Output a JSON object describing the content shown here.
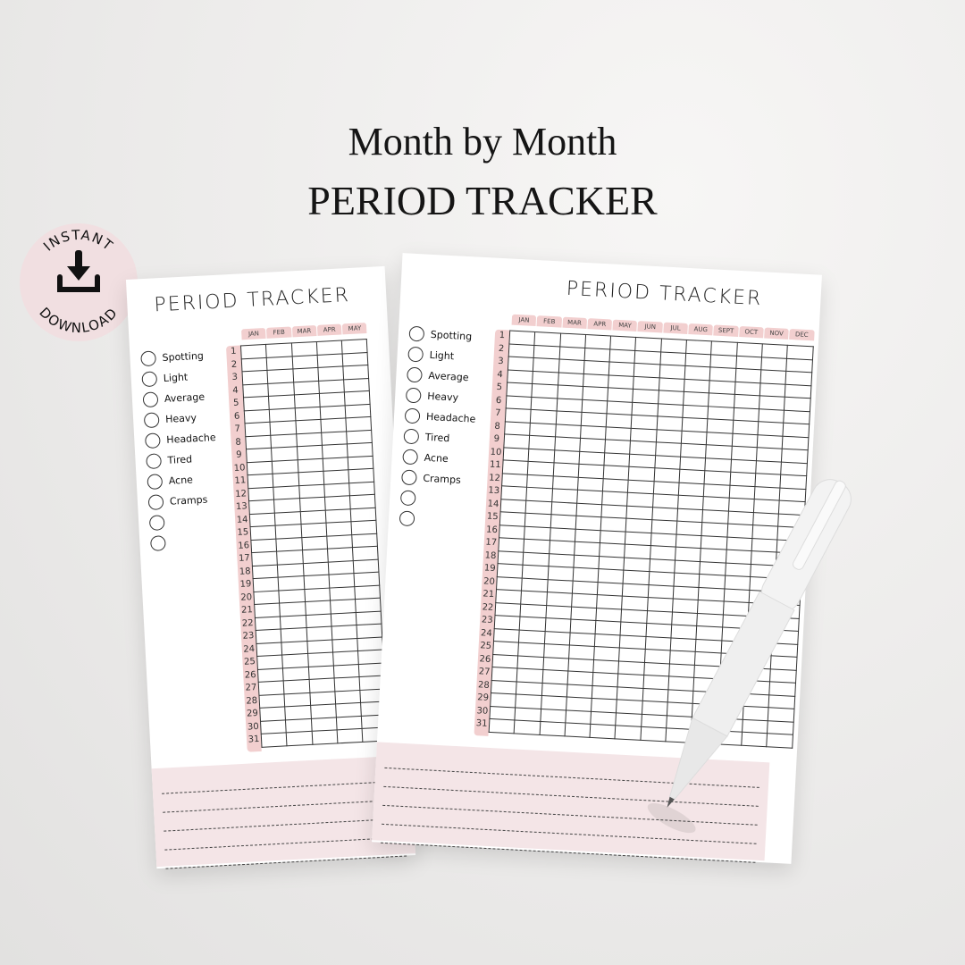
{
  "headline": {
    "line1": "Month by Month",
    "line2": "PERIOD TRACKER"
  },
  "badge": {
    "top_text": "INSTANT",
    "bottom_text": "DOWNLOAD",
    "icon": "download-icon",
    "color": "#f1dfe1"
  },
  "tracker": {
    "title": "PERIOD TRACKER",
    "legend": [
      "Spotting",
      "Light",
      "Average",
      "Heavy",
      "Headache",
      "Tired",
      "Acne",
      "Cramps",
      "",
      ""
    ],
    "months": [
      "JAN",
      "FEB",
      "MAR",
      "APR",
      "MAY",
      "JUN",
      "JUL",
      "AUG",
      "SEPT",
      "OCT",
      "NOV",
      "DEC"
    ],
    "days": [
      "1",
      "2",
      "3",
      "4",
      "5",
      "6",
      "7",
      "8",
      "9",
      "10",
      "11",
      "12",
      "13",
      "14",
      "15",
      "16",
      "17",
      "18",
      "19",
      "20",
      "21",
      "22",
      "23",
      "24",
      "25",
      "26",
      "27",
      "28",
      "29",
      "30",
      "31"
    ],
    "accent": "#f2cfcf",
    "notes_color": "#f4e5e7"
  }
}
